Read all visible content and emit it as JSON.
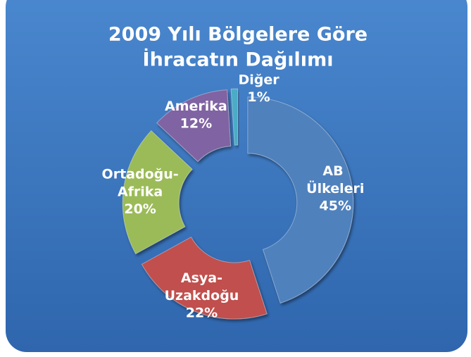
{
  "chart_data": {
    "type": "donut",
    "title": [
      "2009 Yılı Bölgelere Göre",
      "İhracatın Dağılımı"
    ],
    "categories": [
      "AB Ülkeleri",
      "Asya-Uzakdoğu",
      "Ortadoğu-Afrika",
      "Amerika",
      "Diğer"
    ],
    "values": [
      45,
      22,
      20,
      12,
      1
    ],
    "value_labels": [
      "45%",
      "22%",
      "20%",
      "12%",
      "1%"
    ],
    "colors": [
      "#4f81bd",
      "#c0504d",
      "#9bbb59",
      "#8064a2",
      "#4bacc6"
    ]
  }
}
